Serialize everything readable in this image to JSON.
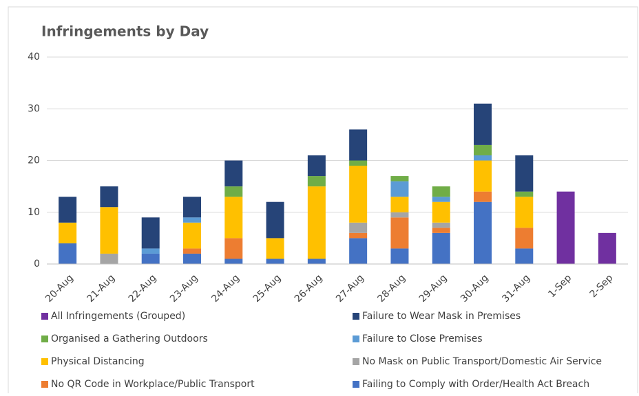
{
  "chart_data": {
    "type": "stacked_bar",
    "title": "Infringements by Day",
    "categories": [
      "20-Aug",
      "21-Aug",
      "22-Aug",
      "23-Aug",
      "24-Aug",
      "25-Aug",
      "26-Aug",
      "27-Aug",
      "28-Aug",
      "29-Aug",
      "30-Aug",
      "31-Aug",
      "1-Sep",
      "2-Sep"
    ],
    "series": [
      {
        "name": "Failing to Comply with Order/Health Act Breach",
        "color": "#4472c4",
        "values": [
          4,
          null,
          2,
          2,
          1,
          1,
          1,
          5,
          3,
          6,
          12,
          3,
          null,
          null
        ]
      },
      {
        "name": "No QR Code in Workplace/Public Transport",
        "color": "#ed7d31",
        "values": [
          null,
          null,
          null,
          1,
          4,
          null,
          null,
          1,
          6,
          1,
          2,
          4,
          null,
          null
        ]
      },
      {
        "name": "No Mask on Public Transport/Domestic Air Service",
        "color": "#a5a5a5",
        "values": [
          null,
          2,
          null,
          null,
          null,
          null,
          null,
          2,
          1,
          1,
          null,
          null,
          null,
          null
        ]
      },
      {
        "name": "Physical Distancing",
        "color": "#ffc000",
        "values": [
          4,
          9,
          null,
          5,
          8,
          4,
          14,
          11,
          3,
          4,
          6,
          6,
          null,
          null
        ]
      },
      {
        "name": "Failure to Close Premises",
        "color": "#5b9bd5",
        "values": [
          null,
          null,
          1,
          1,
          null,
          null,
          null,
          null,
          3,
          1,
          1,
          null,
          null,
          null
        ]
      },
      {
        "name": "Organised a Gathering Outdoors",
        "color": "#70ad47",
        "values": [
          null,
          null,
          null,
          null,
          2,
          null,
          2,
          1,
          1,
          2,
          2,
          1,
          null,
          null
        ]
      },
      {
        "name": "Failure to Wear Mask in Premises",
        "color": "#264478",
        "values": [
          5,
          4,
          6,
          4,
          5,
          7,
          4,
          6,
          null,
          null,
          8,
          7,
          null,
          null
        ]
      },
      {
        "name": "All Infringements (Grouped)",
        "color": "#7030a0",
        "values": [
          null,
          null,
          null,
          null,
          null,
          null,
          null,
          null,
          null,
          null,
          null,
          null,
          14,
          6
        ]
      }
    ],
    "ylim": [
      0,
      40
    ],
    "yticks": [
      0,
      10,
      20,
      30,
      40
    ],
    "grid": true
  }
}
